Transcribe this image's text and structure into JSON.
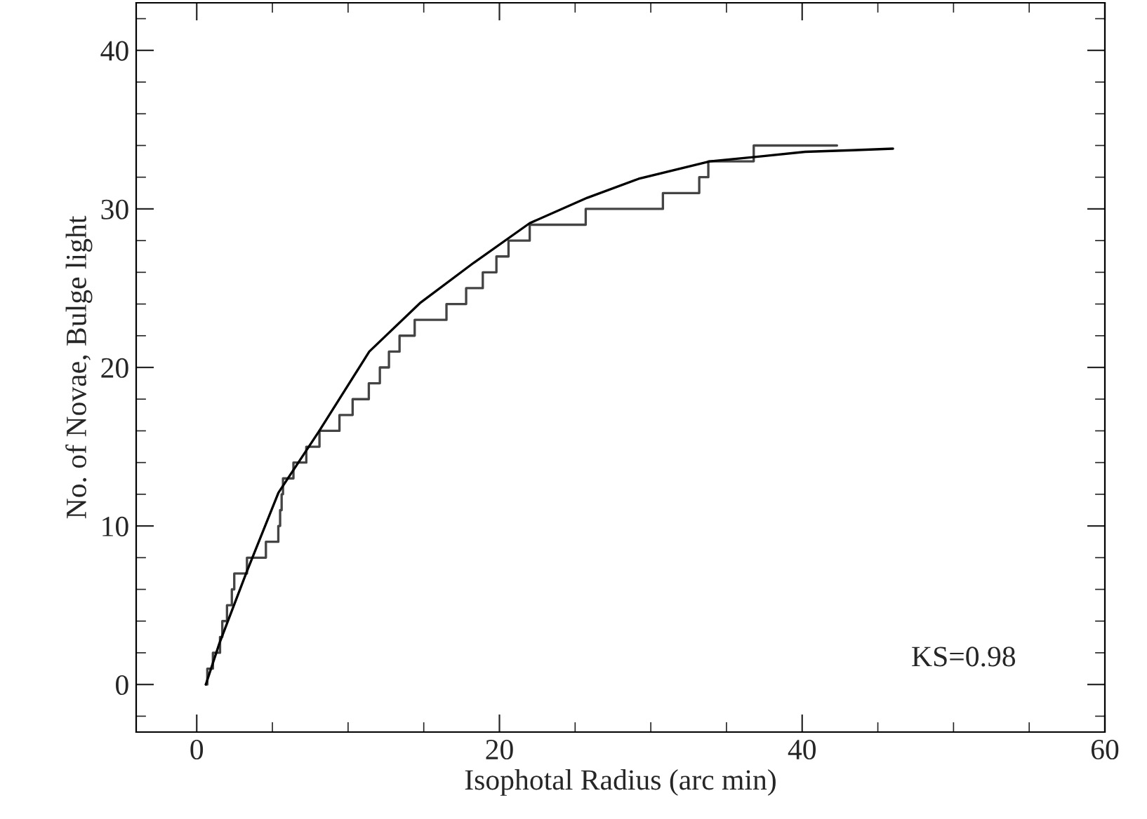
{
  "chart_data": {
    "type": "line",
    "xlabel": "Isophotal Radius (arc min)",
    "ylabel": "No. of Novae, Bulge light",
    "xlim": [
      -4,
      60
    ],
    "ylim": [
      -3,
      43
    ],
    "xticks": [
      0,
      20,
      40,
      60
    ],
    "yticks": [
      0,
      10,
      20,
      30,
      40
    ],
    "grid": false,
    "legend": false,
    "annotations": [
      "KS=0.98"
    ],
    "series": [
      {
        "type": "step",
        "color": "#444444",
        "x": [
          0.6,
          0.7,
          1.07,
          1.54,
          1.69,
          2.0,
          2.32,
          2.48,
          3.32,
          4.57,
          5.39,
          5.51,
          5.61,
          5.7,
          6.39,
          7.24,
          8.11,
          9.43,
          10.3,
          11.37,
          12.1,
          12.7,
          13.4,
          14.4,
          16.5,
          17.8,
          18.9,
          19.8,
          20.6,
          22.0,
          25.7,
          30.8,
          33.2,
          33.8,
          36.8,
          42.3
        ],
        "values": [
          0,
          1,
          2,
          3,
          4,
          5,
          6,
          7,
          8,
          9,
          10,
          11,
          12,
          13,
          14,
          15,
          16,
          17,
          18,
          19,
          20,
          21,
          22,
          23,
          24,
          25,
          26,
          27,
          28,
          29,
          30,
          31,
          32,
          33,
          34,
          34
        ]
      },
      {
        "color": "#000000",
        "x": [
          0.6,
          1.5,
          3.3,
          5.4,
          8.1,
          11.4,
          14.8,
          18.3,
          22.0,
          25.8,
          29.2,
          33.9,
          37.1,
          40.2,
          43.3,
          46.0
        ],
        "values": [
          0,
          2.6,
          7.1,
          12.1,
          16.0,
          21.0,
          24.1,
          26.6,
          29.1,
          30.7,
          31.9,
          33.0,
          33.3,
          33.6,
          33.7,
          33.8
        ]
      }
    ]
  }
}
